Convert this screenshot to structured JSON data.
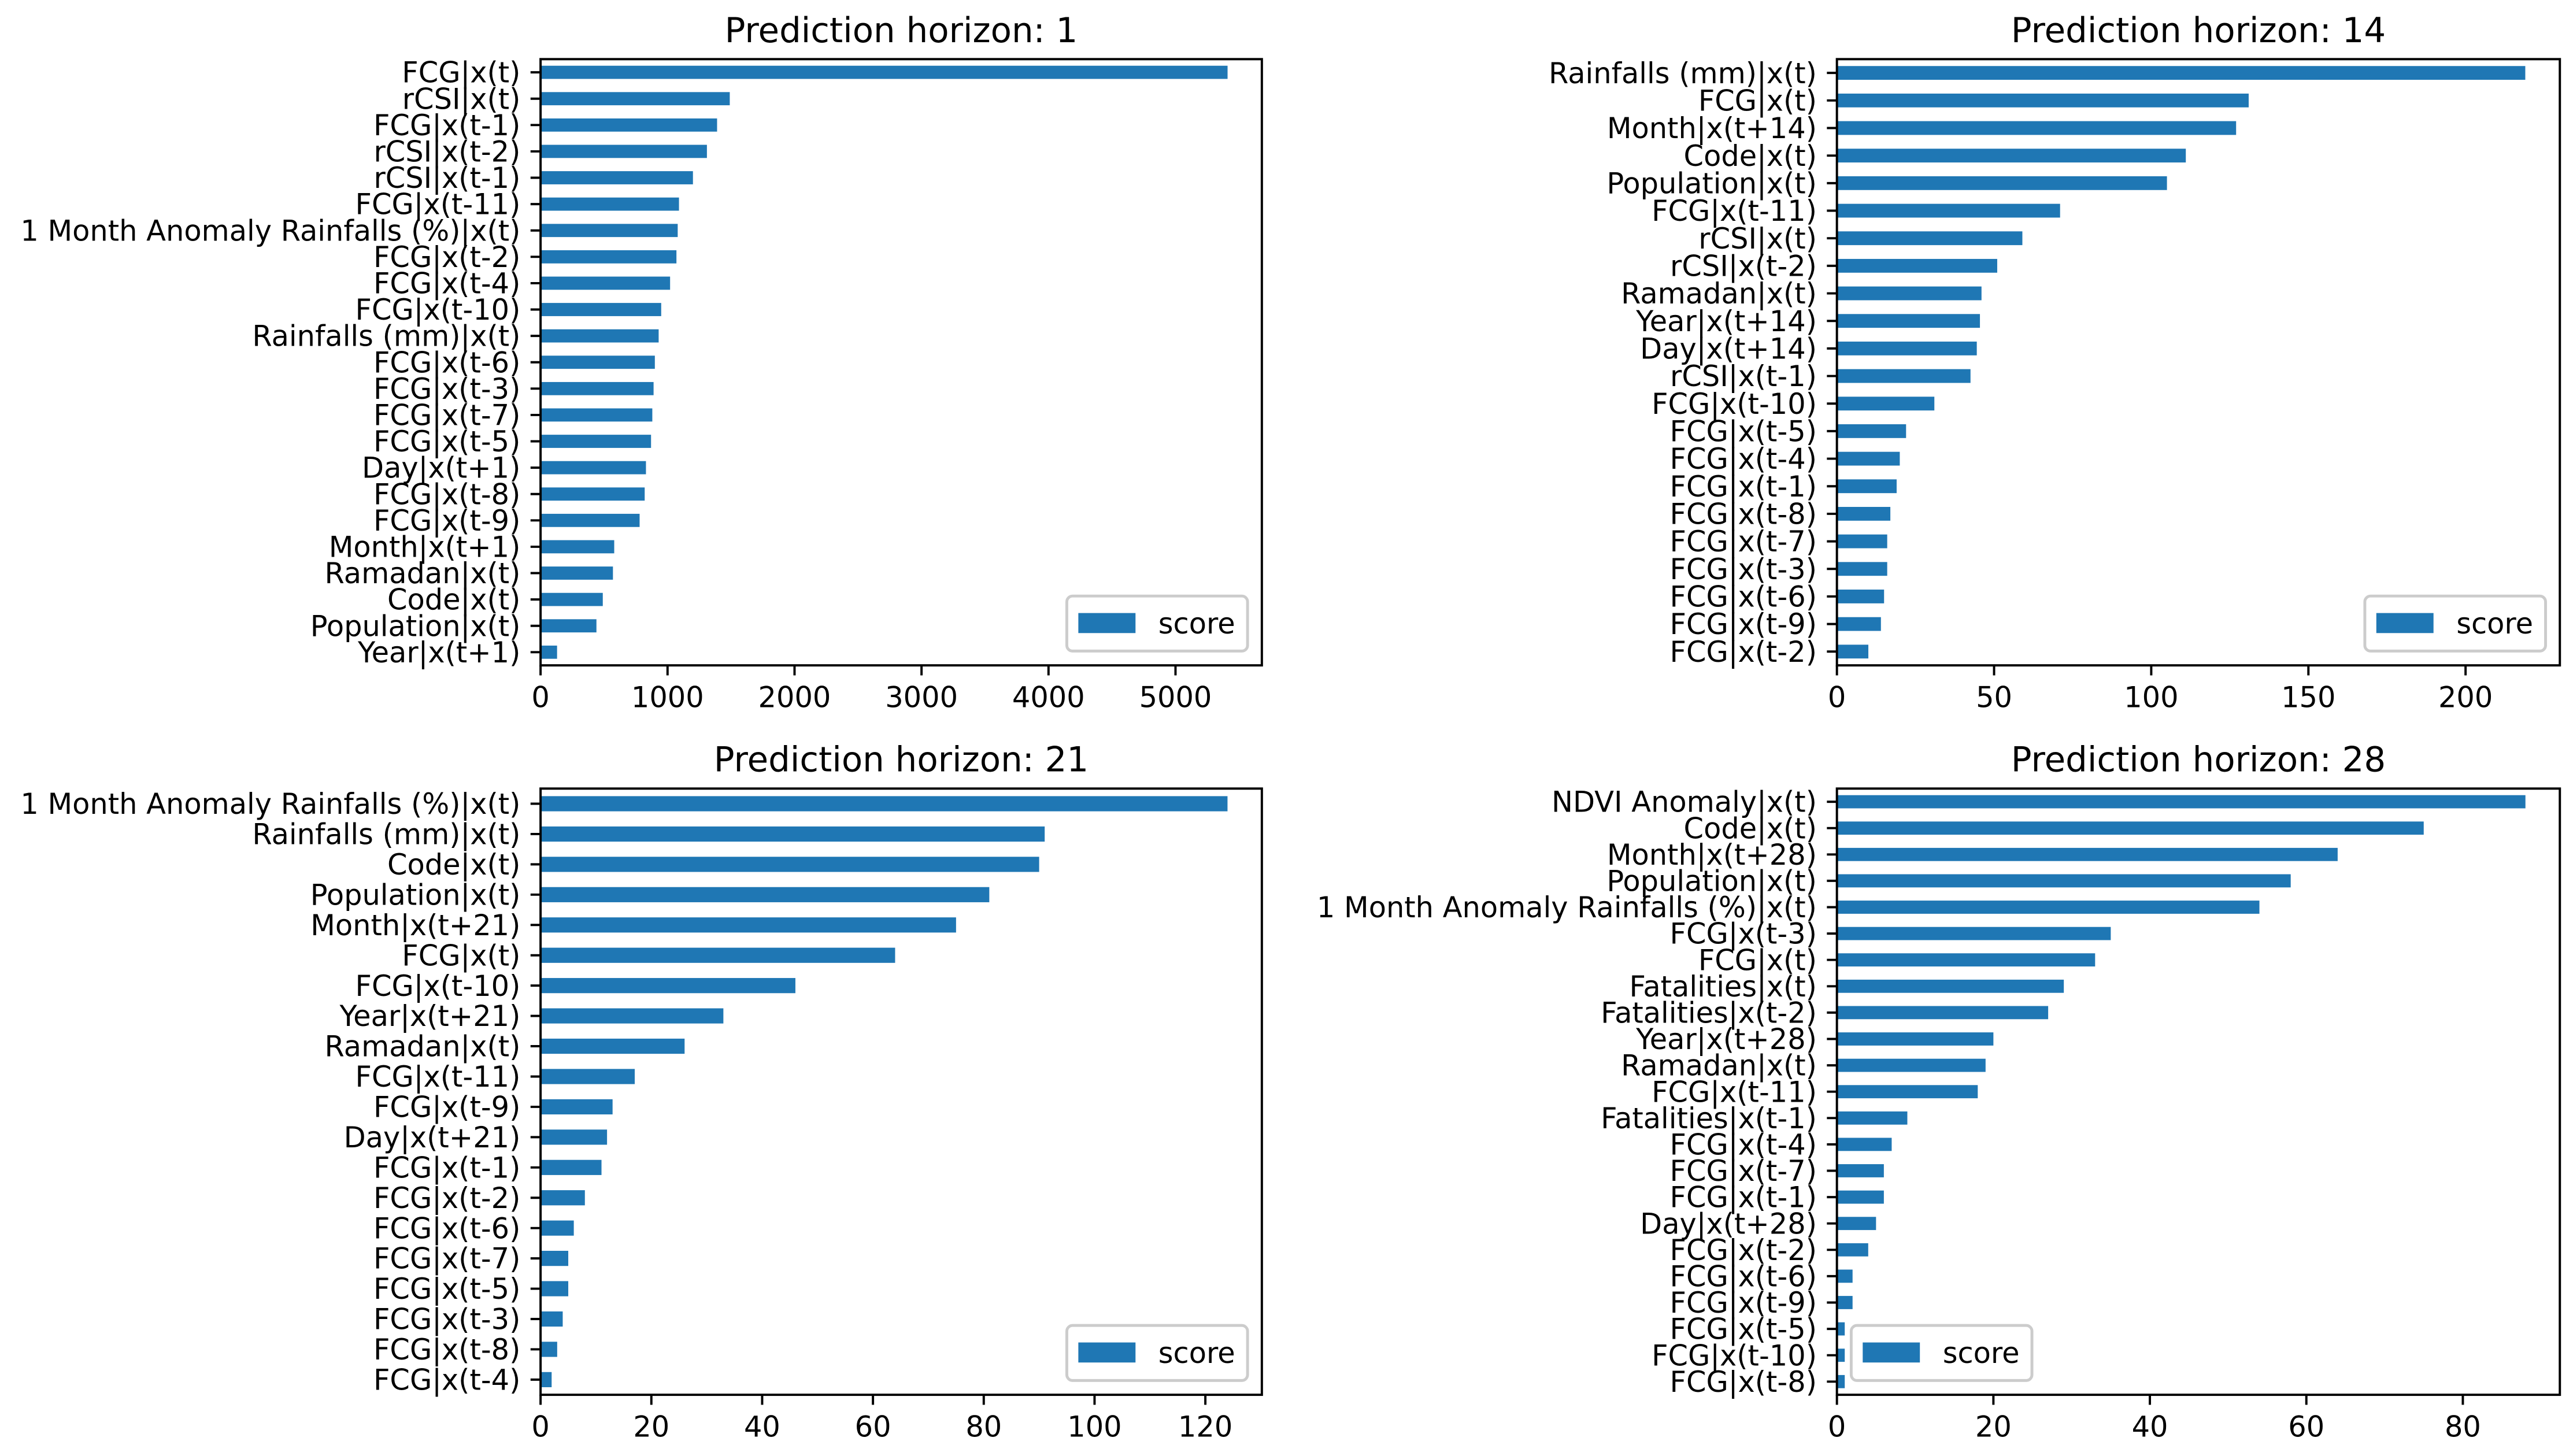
{
  "chart_data": [
    {
      "type": "bar",
      "orientation": "horizontal",
      "title": "Prediction horizon: 1",
      "categories": [
        "FCG|x(t)",
        "rCSI|x(t)",
        "FCG|x(t-1)",
        "rCSI|x(t-2)",
        "rCSI|x(t-1)",
        "FCG|x(t-11)",
        "1 Month Anomaly Rainfalls (%)|x(t)",
        "FCG|x(t-2)",
        "FCG|x(t-4)",
        "FCG|x(t-10)",
        "Rainfalls (mm)|x(t)",
        "FCG|x(t-6)",
        "FCG|x(t-3)",
        "FCG|x(t-7)",
        "FCG|x(t-5)",
        "Day|x(t+1)",
        "FCG|x(t-8)",
        "FCG|x(t-9)",
        "Month|x(t+1)",
        "Ramadan|x(t)",
        "Code|x(t)",
        "Population|x(t)",
        "Year|x(t+1)"
      ],
      "series": [
        {
          "name": "score",
          "color": "#1f77b4",
          "values": [
            5410,
            1490,
            1390,
            1310,
            1200,
            1090,
            1080,
            1070,
            1020,
            950,
            930,
            900,
            890,
            880,
            870,
            830,
            820,
            780,
            580,
            570,
            490,
            440,
            130
          ]
        }
      ],
      "xlim": [
        0,
        5680
      ],
      "xticks": [
        0,
        1000,
        2000,
        3000,
        4000,
        5000
      ],
      "legend": "lower right",
      "grid": false
    },
    {
      "type": "bar",
      "orientation": "horizontal",
      "title": "Prediction horizon: 14",
      "categories": [
        "Rainfalls (mm)|x(t)",
        "FCG|x(t)",
        "Month|x(t+14)",
        "Code|x(t)",
        "Population|x(t)",
        "FCG|x(t-11)",
        "rCSI|x(t)",
        "rCSI|x(t-2)",
        "Ramadan|x(t)",
        "Year|x(t+14)",
        "Day|x(t+14)",
        "rCSI|x(t-1)",
        "FCG|x(t-10)",
        "FCG|x(t-5)",
        "FCG|x(t-4)",
        "FCG|x(t-1)",
        "FCG|x(t-8)",
        "FCG|x(t-7)",
        "FCG|x(t-3)",
        "FCG|x(t-6)",
        "FCG|x(t-9)",
        "FCG|x(t-2)"
      ],
      "series": [
        {
          "name": "score",
          "color": "#1f77b4",
          "values": [
            219,
            131,
            127,
            111,
            105,
            71,
            59,
            51,
            46,
            45.5,
            44.5,
            42.5,
            31,
            22,
            20,
            19,
            17,
            16,
            16,
            15,
            14,
            10
          ]
        }
      ],
      "xlim": [
        0,
        230
      ],
      "xticks": [
        0,
        50,
        100,
        150,
        200
      ],
      "legend": "lower right",
      "grid": false
    },
    {
      "type": "bar",
      "orientation": "horizontal",
      "title": "Prediction horizon: 21",
      "categories": [
        "1 Month Anomaly Rainfalls (%)|x(t)",
        "Rainfalls (mm)|x(t)",
        "Code|x(t)",
        "Population|x(t)",
        "Month|x(t+21)",
        "FCG|x(t)",
        "FCG|x(t-10)",
        "Year|x(t+21)",
        "Ramadan|x(t)",
        "FCG|x(t-11)",
        "FCG|x(t-9)",
        "Day|x(t+21)",
        "FCG|x(t-1)",
        "FCG|x(t-2)",
        "FCG|x(t-6)",
        "FCG|x(t-7)",
        "FCG|x(t-5)",
        "FCG|x(t-3)",
        "FCG|x(t-8)",
        "FCG|x(t-4)"
      ],
      "series": [
        {
          "name": "score",
          "color": "#1f77b4",
          "values": [
            124,
            91,
            90,
            81,
            75,
            64,
            46,
            33,
            26,
            17,
            13,
            12,
            11,
            8,
            6,
            5,
            5,
            4,
            3,
            2
          ]
        }
      ],
      "xlim": [
        0,
        130.2
      ],
      "xticks": [
        0,
        20,
        40,
        60,
        80,
        100,
        120
      ],
      "legend": "lower right",
      "grid": false
    },
    {
      "type": "bar",
      "orientation": "horizontal",
      "title": "Prediction horizon: 28",
      "categories": [
        "NDVI Anomaly|x(t)",
        "Code|x(t)",
        "Month|x(t+28)",
        "Population|x(t)",
        "1 Month Anomaly Rainfalls (%)|x(t)",
        "FCG|x(t-3)",
        "FCG|x(t)",
        "Fatalities|x(t)",
        "Fatalities|x(t-2)",
        "Year|x(t+28)",
        "Ramadan|x(t)",
        "FCG|x(t-11)",
        "Fatalities|x(t-1)",
        "FCG|x(t-4)",
        "FCG|x(t-7)",
        "FCG|x(t-1)",
        "Day|x(t+28)",
        "FCG|x(t-2)",
        "FCG|x(t-6)",
        "FCG|x(t-9)",
        "FCG|x(t-5)",
        "FCG|x(t-10)",
        "FCG|x(t-8)"
      ],
      "series": [
        {
          "name": "score",
          "color": "#1f77b4",
          "values": [
            88,
            75,
            64,
            58,
            54,
            35,
            33,
            29,
            27,
            20,
            19,
            18,
            9,
            7,
            6,
            6,
            5,
            4,
            2,
            2,
            1,
            1,
            1
          ]
        }
      ],
      "xlim": [
        0,
        92.4
      ],
      "xticks": [
        0,
        20,
        40,
        60,
        80
      ],
      "legend": "lower left",
      "grid": false
    }
  ]
}
